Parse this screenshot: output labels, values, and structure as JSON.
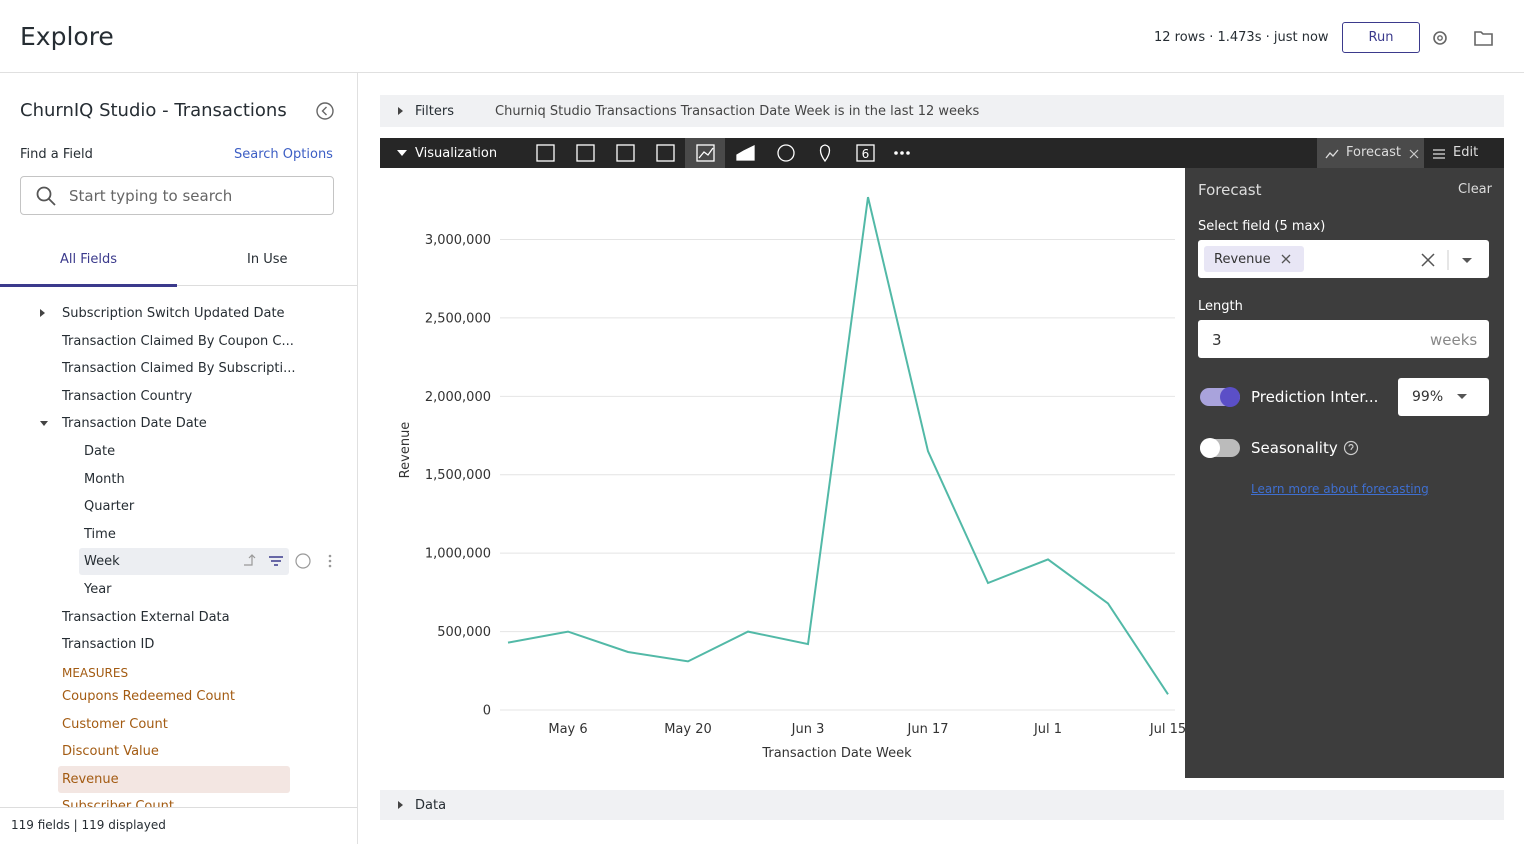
{
  "header": {
    "title": "Explore",
    "status": "12 rows · 1.473s · just now",
    "run": "Run"
  },
  "sidebar": {
    "title": "ChurnIQ Studio - Transactions",
    "find_label": "Find a Field",
    "search_options": "Search Options",
    "search_placeholder": "Start typing to search",
    "tabs": [
      "All Fields",
      "In Use"
    ],
    "fields": [
      "Subscription Switch Updated Date",
      "Transaction Claimed By Coupon C...",
      "Transaction Claimed By Subscripti...",
      "Transaction Country",
      "Transaction Date Date",
      "Date",
      "Month",
      "Quarter",
      "Time",
      "Week",
      "Year",
      "Transaction External Data",
      "Transaction ID"
    ],
    "measures_heading": "MEASURES",
    "measures": [
      "Coupons Redeemed Count",
      "Customer Count",
      "Discount Value",
      "Revenue",
      "Subscriber Count"
    ],
    "footer": "119 fields | 119 displayed"
  },
  "main": {
    "filters_label": "Filters",
    "filters_text": "Churniq Studio Transactions Transaction Date Week is in the last 12 weeks",
    "viz_label": "Visualization",
    "single_value_icon": "6",
    "forecast_tab": "Forecast",
    "edit_tab": "Edit",
    "data_label": "Data"
  },
  "forecast": {
    "title": "Forecast",
    "clear": "Clear",
    "select_label": "Select field (5 max)",
    "chip": "Revenue",
    "length_label": "Length",
    "length_value": "3",
    "length_unit": "weeks",
    "prediction_label": "Prediction Inter...",
    "prediction_value": "99%",
    "seasonality_label": "Seasonality",
    "link": "Learn more about forecasting"
  },
  "chart_data": {
    "type": "line",
    "x_label": "Transaction Date Week",
    "y_label": "Revenue",
    "categories": [
      null,
      "May 6",
      null,
      "May 20",
      null,
      "Jun 3",
      null,
      "Jun 17",
      null,
      "Jul 1",
      null,
      "Jul 15"
    ],
    "values": [
      430000,
      500000,
      370000,
      310000,
      500000,
      420000,
      3270000,
      1650000,
      810000,
      960000,
      680000,
      100000
    ],
    "color": "#52b9a7",
    "ylim": [
      0,
      3350000
    ],
    "yticks": [
      0,
      {
        "value": 500000,
        "label": "500,000"
      },
      {
        "value": 1000000,
        "label": "1,000,000"
      },
      {
        "value": 1500000,
        "label": "1,500,000"
      },
      {
        "value": 2000000,
        "label": "2,000,000"
      },
      {
        "value": 2500000,
        "label": "2,500,000"
      },
      {
        "value": 3000000,
        "label": "3,000,000"
      }
    ],
    "grid": true
  }
}
